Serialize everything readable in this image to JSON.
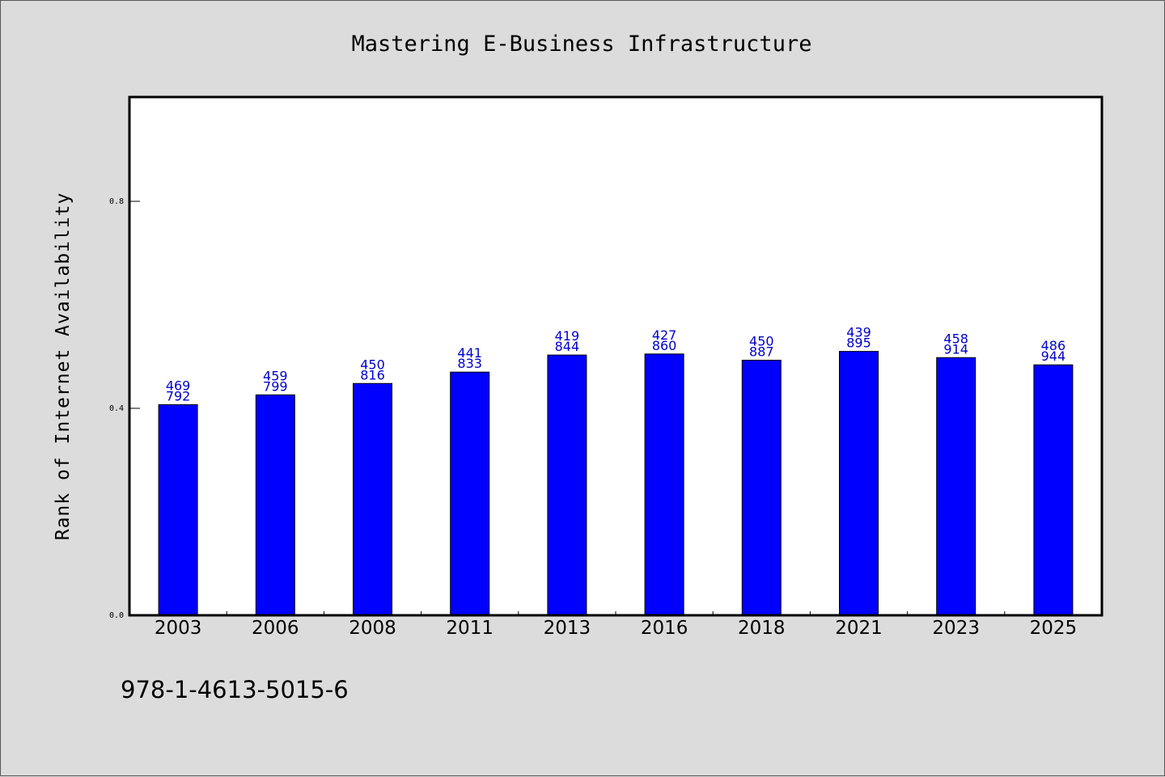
{
  "footer_text": "978-1-4613-5015-6",
  "colors": {
    "bar": "#0000ff",
    "label": "#0000cc",
    "background": "#dcdcdc",
    "plot_background": "#ffffff"
  },
  "chart_data": {
    "type": "bar",
    "title": "Mastering E-Business Infrastructure",
    "xlabel": "",
    "ylabel": "Rank of Internet Availability",
    "ylim": [
      0,
      1.0
    ],
    "yticks": [
      0.0,
      0.4,
      0.8
    ],
    "ytick_labels": [
      "0.0",
      "0.4",
      "0.8"
    ],
    "grid": false,
    "legend": "none",
    "categories": [
      "2003",
      "2006",
      "2008",
      "2011",
      "2013",
      "2016",
      "2018",
      "2021",
      "2023",
      "2025"
    ],
    "values": [
      0.407,
      0.426,
      0.448,
      0.47,
      0.503,
      0.505,
      0.493,
      0.51,
      0.498,
      0.484
    ],
    "data_labels": [
      [
        "469",
        "792"
      ],
      [
        "459",
        "799"
      ],
      [
        "450",
        "816"
      ],
      [
        "441",
        "833"
      ],
      [
        "419",
        "844"
      ],
      [
        "427",
        "860"
      ],
      [
        "450",
        "887"
      ],
      [
        "439",
        "895"
      ],
      [
        "458",
        "914"
      ],
      [
        "486",
        "944"
      ]
    ]
  }
}
